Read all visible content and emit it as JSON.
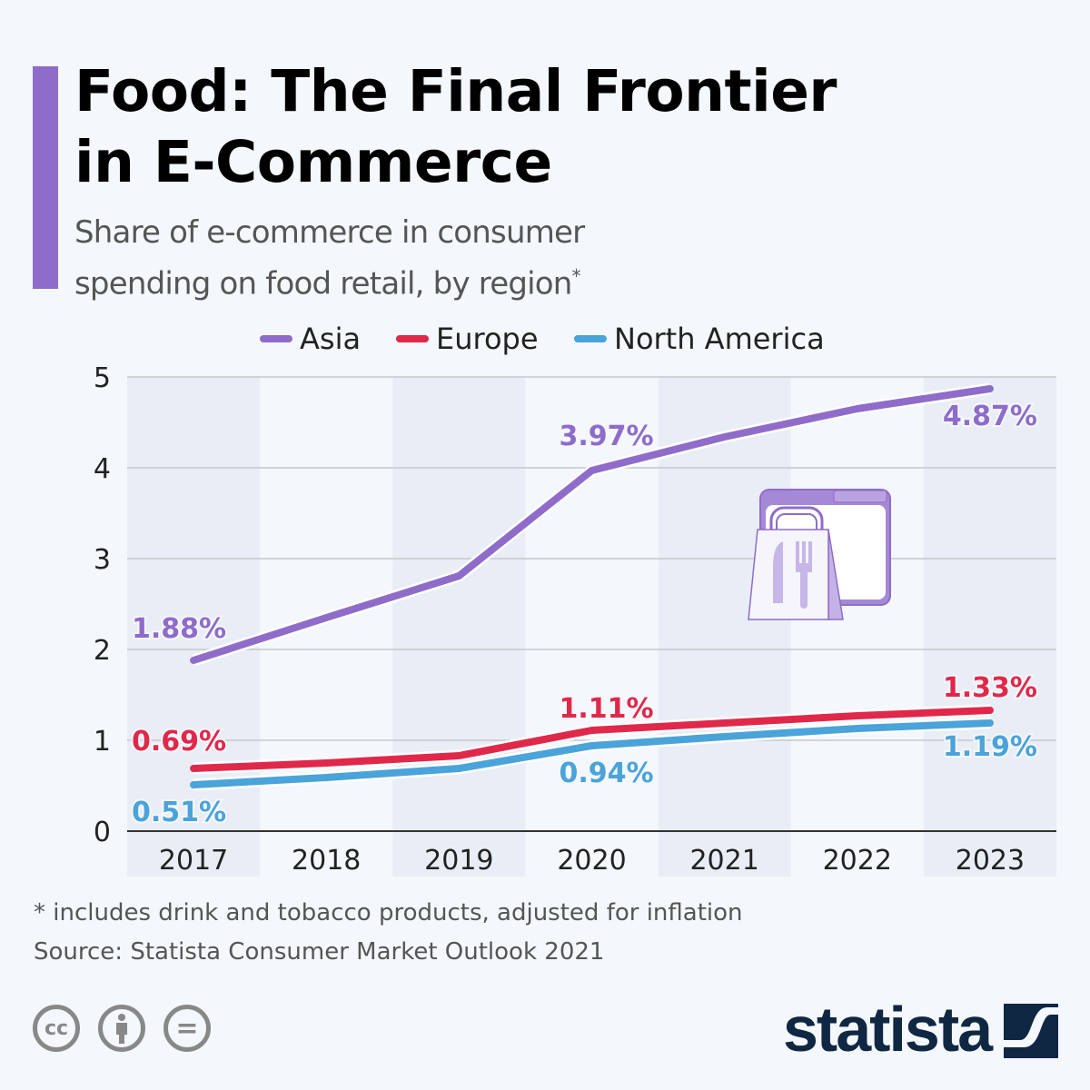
{
  "header": {
    "title_line1": "Food: The Final Frontier",
    "title_line2": "in E-Commerce",
    "subtitle_line1": "Share of e-commerce in consumer",
    "subtitle_line2": "spending on food retail, by region",
    "subtitle_mark": "*",
    "accent_color": "#8f6cc9"
  },
  "chart_data": {
    "type": "line",
    "categories": [
      "2017",
      "2018",
      "2019",
      "2020",
      "2021",
      "2022",
      "2023"
    ],
    "ylim": [
      0,
      5
    ],
    "yticks": [
      "0",
      "1",
      "2",
      "3",
      "4",
      "5"
    ],
    "grid": true,
    "legend_placement": "top",
    "series": [
      {
        "name": "Asia",
        "color": "#8f6cc9",
        "values": [
          1.88,
          2.35,
          2.81,
          3.97,
          4.34,
          4.65,
          4.87
        ],
        "labels": [
          "1.88%",
          "",
          "",
          "3.97%",
          "",
          "",
          "4.87%"
        ]
      },
      {
        "name": "Europe",
        "color": "#e0284a",
        "values": [
          0.69,
          0.75,
          0.83,
          1.11,
          1.19,
          1.27,
          1.33
        ],
        "labels": [
          "0.69%",
          "",
          "",
          "1.11%",
          "",
          "",
          "1.33%"
        ]
      },
      {
        "name": "North America",
        "color": "#4aa3d9",
        "values": [
          0.51,
          0.59,
          0.69,
          0.94,
          1.04,
          1.13,
          1.19
        ],
        "labels": [
          "0.51%",
          "",
          "",
          "0.94%",
          "",
          "",
          "1.19%"
        ]
      }
    ]
  },
  "footer": {
    "note": "* includes drink and tobacco products, adjusted for inflation",
    "source": "Source: Statista Consumer Market Outlook 2021",
    "logo": "statista",
    "license_icons": [
      "cc-icon",
      "by-icon",
      "nd-icon"
    ],
    "cc_text": "cc",
    "nd_text": "="
  }
}
